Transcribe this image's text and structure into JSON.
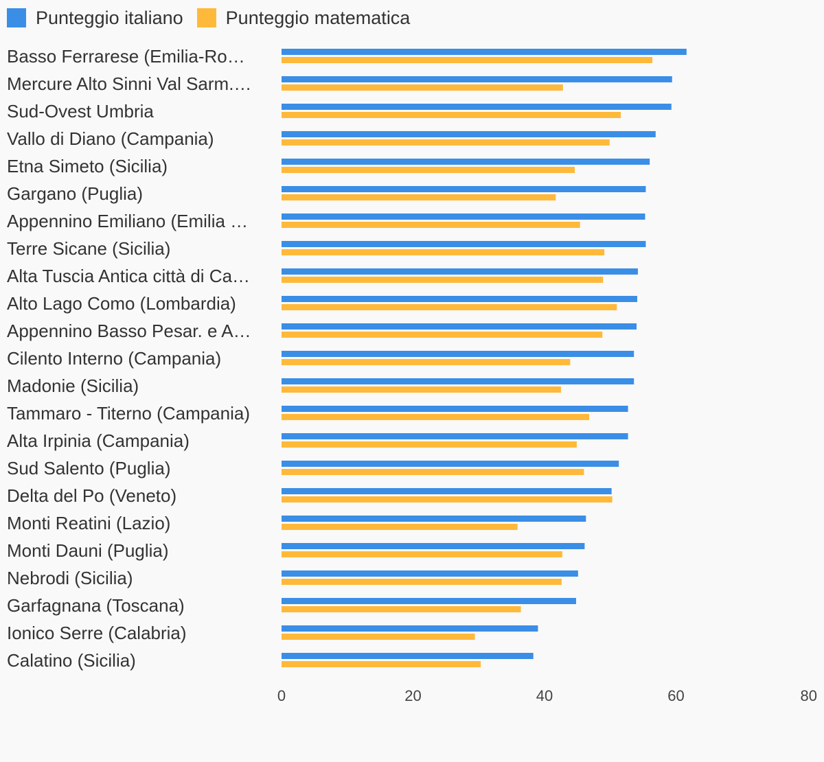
{
  "chart_data": {
    "type": "bar",
    "orientation": "horizontal",
    "title": "",
    "xlabel": "",
    "ylabel": "",
    "xlim": [
      0,
      80
    ],
    "x_ticks": [
      0,
      20,
      40,
      60,
      80
    ],
    "grid": false,
    "legend_position": "top-left",
    "categories": [
      "Basso Ferrarese (Emilia-Ro…",
      "Mercure Alto Sinni Val Sarm.…",
      "Sud-Ovest Umbria",
      "Vallo di Diano (Campania)",
      "Etna Simeto (Sicilia)",
      "Gargano (Puglia)",
      "Appennino Emiliano (Emilia …",
      "Terre Sicane (Sicilia)",
      "Alta Tuscia Antica città di Ca…",
      "Alto Lago Como (Lombardia)",
      "Appennino Basso Pesar. e A…",
      "Cilento Interno (Campania)",
      "Madonie (Sicilia)",
      "Tammaro - Titerno (Campania)",
      "Alta Irpinia (Campania)",
      "Sud Salento (Puglia)",
      "Delta del Po (Veneto)",
      "Monti Reatini (Lazio)",
      "Monti Dauni (Puglia)",
      "Nebrodi (Sicilia)",
      "Garfagnana (Toscana)",
      "Ionico Serre (Calabria)",
      "Calatino (Sicilia)"
    ],
    "series": [
      {
        "name": "Punteggio italiano",
        "color": "#3a8ee6",
        "values": [
          61.6,
          59.4,
          59.3,
          56.9,
          56.0,
          55.4,
          55.3,
          55.4,
          54.2,
          54.1,
          54.0,
          53.6,
          53.6,
          52.7,
          52.7,
          51.3,
          50.2,
          46.3,
          46.1,
          45.1,
          44.8,
          39.0,
          38.3
        ]
      },
      {
        "name": "Punteggio matematica",
        "color": "#ffb93a",
        "values": [
          56.4,
          42.8,
          51.6,
          49.9,
          44.6,
          41.7,
          45.4,
          49.1,
          48.9,
          51.0,
          48.8,
          43.9,
          42.5,
          46.8,
          44.9,
          46.0,
          50.3,
          35.9,
          42.7,
          42.6,
          36.4,
          29.4,
          30.3
        ]
      }
    ]
  }
}
